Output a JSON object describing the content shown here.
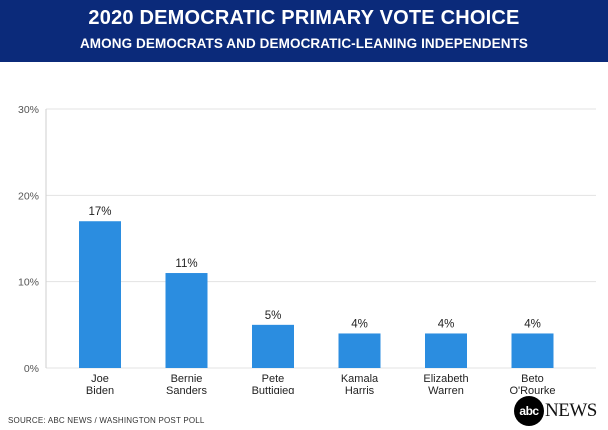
{
  "header": {
    "title": "2020 DEMOCRATIC PRIMARY VOTE CHOICE",
    "subtitle": "AMONG DEMOCRATS AND DEMOCRATIC-LEANING INDEPENDENTS"
  },
  "source": "SOURCE: ABC NEWS / WASHINGTON POST POLL",
  "logo": {
    "disc": "abc",
    "word": "NEWS"
  },
  "colors": {
    "bar": "#2b8de0",
    "header_bg": "#0b2a7a",
    "grid": "#e3e3e3"
  },
  "chart_data": {
    "type": "bar",
    "title": "2020 DEMOCRATIC PRIMARY VOTE CHOICE",
    "categories": [
      [
        "Joe",
        "Biden"
      ],
      [
        "Bernie",
        "Sanders"
      ],
      [
        "Pete",
        "Buttigieg"
      ],
      [
        "Kamala",
        "Harris"
      ],
      [
        "Elizabeth",
        "Warren"
      ],
      [
        "Beto",
        "O'Rourke"
      ]
    ],
    "values": [
      17,
      11,
      5,
      4,
      4,
      4
    ],
    "data_labels": [
      "17%",
      "11%",
      "5%",
      "4%",
      "4%",
      "4%"
    ],
    "yticks": [
      0,
      10,
      20,
      30
    ],
    "ytick_labels": [
      "0%",
      "10%",
      "20%",
      "30%"
    ],
    "ylim": [
      0,
      30
    ],
    "xlabel": "",
    "ylabel": "",
    "grid": true
  }
}
